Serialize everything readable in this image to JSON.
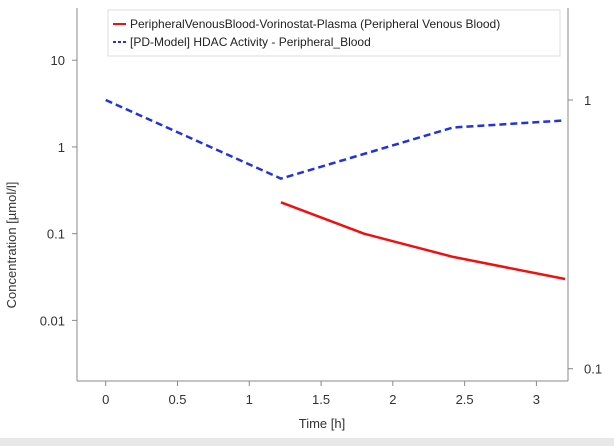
{
  "chart_data": {
    "type": "line",
    "title": "",
    "xlabel": "Time [h]",
    "ylabel": "Concentration [µmol/l]",
    "y2label": "",
    "xlim": [
      -0.2,
      3.22
    ],
    "ylim": [
      0.002,
      40
    ],
    "ylog": true,
    "y2lim": [
      0.09,
      2.2
    ],
    "y2log": true,
    "xticks": [
      {
        "value": 0,
        "label": "0"
      },
      {
        "value": 0.5,
        "label": "0.5"
      },
      {
        "value": 1,
        "label": "1"
      },
      {
        "value": 1.5,
        "label": "1.5"
      },
      {
        "value": 2,
        "label": "2"
      },
      {
        "value": 2.5,
        "label": "2.5"
      },
      {
        "value": 3,
        "label": "3"
      }
    ],
    "yticks": [
      {
        "value": 10,
        "label": "10"
      },
      {
        "value": 1,
        "label": "1"
      },
      {
        "value": 0.1,
        "label": "0.1"
      },
      {
        "value": 0.01,
        "label": "0.01"
      }
    ],
    "y2ticks": [
      {
        "value": 1,
        "label": "1"
      },
      {
        "value": 0.1,
        "label": "0.1"
      }
    ],
    "legend_position": "top-right",
    "series": [
      {
        "name": "PeripheralVenousBlood-Vorinostat-Plasma (Peripheral Venous Blood)",
        "axis": "left",
        "color": "#ee1111",
        "dash": "solid",
        "x": [
          1.22,
          1.8,
          2.42,
          3.2
        ],
        "y": [
          0.23,
          0.1,
          0.054,
          0.03
        ]
      },
      {
        "name": "[PD-Model] HDAC Activity - Peripheral_Blood",
        "axis": "right",
        "color": "#2233dd",
        "dash": "dashed",
        "x": [
          0,
          1.22,
          2.42,
          3.2
        ],
        "y": [
          1.0,
          0.51,
          0.79,
          0.84
        ]
      }
    ]
  }
}
